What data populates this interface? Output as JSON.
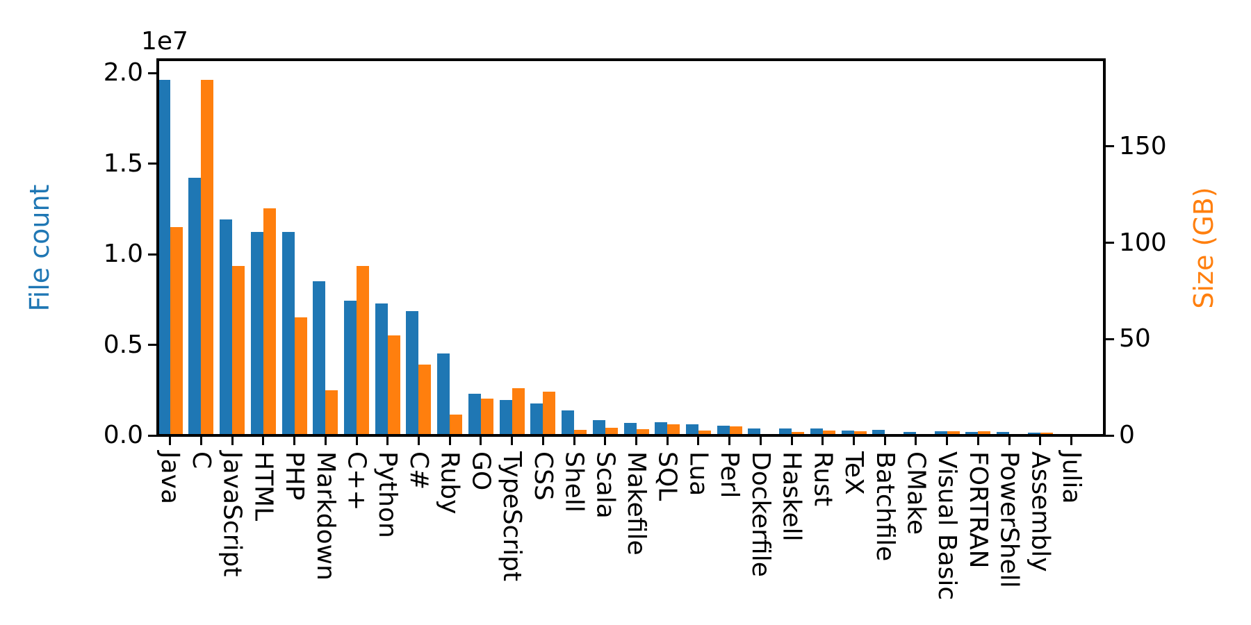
{
  "figure": {
    "background": "#ffffff"
  },
  "chart_data": {
    "type": "bar",
    "title": "",
    "categories": [
      "Java",
      "C",
      "JavaScript",
      "HTML",
      "PHP",
      "Markdown",
      "C++",
      "Python",
      "C#",
      "Ruby",
      "GO",
      "TypeScript",
      "CSS",
      "Shell",
      "Scala",
      "Makefile",
      "SQL",
      "Lua",
      "Perl",
      "Dockerfile",
      "Haskell",
      "Rust",
      "TeX",
      "Batchfile",
      "CMake",
      "Visual Basic",
      "FORTRAN",
      "PowerShell",
      "Assembly",
      "Julia"
    ],
    "series": [
      {
        "name": "File count",
        "axis": "left",
        "color": "#1f77b4",
        "values": [
          19600000,
          14200000,
          11900000,
          11230000,
          11230000,
          8500000,
          7420000,
          7290000,
          6870000,
          4520000,
          2300000,
          1970000,
          1750000,
          1390000,
          850000,
          700000,
          720000,
          600000,
          520000,
          400000,
          370000,
          385000,
          270000,
          295000,
          203000,
          225000,
          203000,
          200000,
          150000,
          45000
        ]
      },
      {
        "name": "Size (GB)",
        "axis": "right",
        "color": "#ff7f0e",
        "values": [
          108,
          184.5,
          88,
          118,
          61.4,
          23.3,
          88,
          52,
          36.8,
          10.9,
          19,
          24.5,
          22.7,
          2.8,
          3.8,
          3.1,
          5.9,
          2.6,
          4.8,
          0.5,
          1.9,
          2.5,
          2.2,
          0.3,
          0.3,
          2.3,
          2.2,
          0.3,
          1.3,
          0.1
        ]
      }
    ],
    "left_axis": {
      "label": "File count",
      "color": "#1f77b4",
      "offset_text": "1e7",
      "tick_labels": [
        "0.0",
        "0.5",
        "1.0",
        "1.5",
        "2.0"
      ],
      "tick_values": [
        0,
        5000000,
        10000000,
        15000000,
        20000000
      ],
      "max": 20730000
    },
    "right_axis": {
      "label": "Size (GB)",
      "color": "#ff7f0e",
      "tick_labels": [
        "0",
        "50",
        "100",
        "150"
      ],
      "tick_values": [
        0,
        50,
        100,
        150
      ],
      "max": 195
    },
    "x_axis": {
      "tick_label_rotation": 90
    },
    "grid": "off",
    "legend": "none"
  }
}
